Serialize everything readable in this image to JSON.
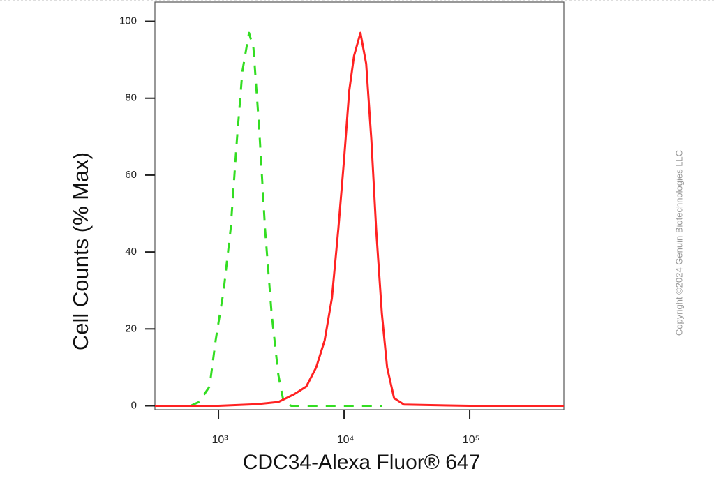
{
  "chart_data": {
    "type": "line",
    "xlabel": "CDC34-Alexa Fluor® 647",
    "ylabel": "Cell Counts (% Max)",
    "copyright": "Copyright ©2024 Genuin Biotechnologies LLC",
    "xscale": "log",
    "xlim": [
      312,
      562000
    ],
    "ylim": [
      -1,
      105
    ],
    "xticks": [
      {
        "value": 1000,
        "label": "10³"
      },
      {
        "value": 10000,
        "label": "10⁴"
      },
      {
        "value": 100000,
        "label": "10⁵"
      }
    ],
    "yticks": [
      0,
      20,
      40,
      60,
      80,
      100
    ],
    "series": [
      {
        "color": "#33dd22",
        "dash": true,
        "x": [
          600,
          700,
          850,
          950,
          1100,
          1250,
          1400,
          1550,
          1750,
          1900,
          2100,
          2350,
          2650,
          3000,
          3300,
          3800,
          6000,
          12000,
          20000
        ],
        "values": [
          0,
          1,
          5,
          17,
          30,
          46,
          69,
          87,
          97,
          93,
          73,
          46,
          24,
          8,
          1,
          0,
          0,
          0,
          0
        ]
      },
      {
        "color": "#ff2222",
        "dash": false,
        "x": [
          312,
          1000,
          2000,
          3000,
          4000,
          5000,
          6000,
          7000,
          8000,
          9000,
          10000,
          11000,
          12000,
          13500,
          15000,
          16500,
          18000,
          20000,
          22000,
          25000,
          30000,
          100000,
          562000
        ],
        "values": [
          0,
          0,
          0.4,
          1,
          3,
          5,
          10,
          17,
          28,
          46,
          64,
          82,
          91,
          97,
          89,
          69,
          46,
          24,
          10,
          2,
          0.3,
          0,
          0
        ]
      }
    ]
  }
}
